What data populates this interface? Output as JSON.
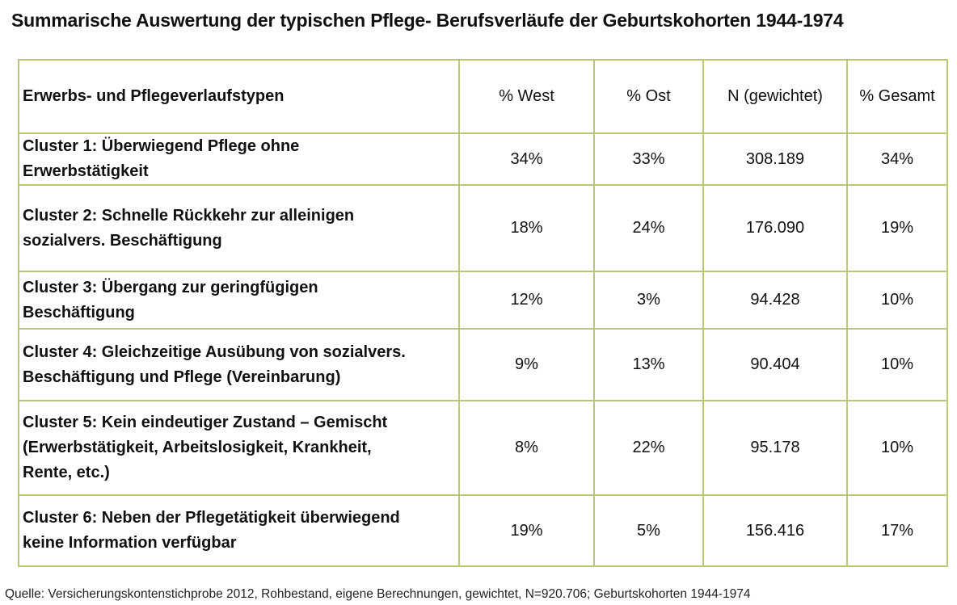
{
  "title": "Summarische Auswertung der typischen Pflege- Berufsverläufe der Geburtskohorten 1944-1974",
  "table": {
    "headers": [
      "Erwerbs- und Pflegeverlaufstypen",
      "% West",
      "% Ost",
      "N (gewichtet)",
      "% Gesamt"
    ],
    "rows": [
      {
        "label": [
          "Cluster 1: Überwiegend Pflege ohne",
          "Erwerbstätigkeit"
        ],
        "west": "34%",
        "ost": "33%",
        "n": "308.189",
        "gesamt": "34%"
      },
      {
        "label": [
          "Cluster 2: Schnelle Rückkehr zur alleinigen",
          "sozialvers. Beschäftigung"
        ],
        "west": "18%",
        "ost": "24%",
        "n": "176.090",
        "gesamt": "19%"
      },
      {
        "label": [
          "Cluster 3: Übergang zur geringfügigen",
          "Beschäftigung"
        ],
        "west": "12%",
        "ost": "3%",
        "n": "94.428",
        "gesamt": "10%"
      },
      {
        "label": [
          "Cluster 4: Gleichzeitige Ausübung von sozialvers.",
          "Beschäftigung und Pflege (Vereinbarung)"
        ],
        "west": "9%",
        "ost": "13%",
        "n": "90.404",
        "gesamt": "10%"
      },
      {
        "label": [
          "Cluster 5: Kein eindeutiger Zustand – Gemischt",
          "(Erwerbstätigkeit, Arbeitslosigkeit, Krankheit,",
          "Rente, etc.)"
        ],
        "west": "8%",
        "ost": "22%",
        "n": "95.178",
        "gesamt": "10%"
      },
      {
        "label": [
          "Cluster 6: Neben der Pflegetätigkeit überwiegend",
          "keine Information verfügbar"
        ],
        "west": "19%",
        "ost": "5%",
        "n": "156.416",
        "gesamt": "17%"
      }
    ]
  },
  "source": "Quelle: Versicherungskontenstichprobe 2012, Rohbestand, eigene Berechnungen, gewichtet, N=920.706; Geburtskohorten 1944-1974"
}
